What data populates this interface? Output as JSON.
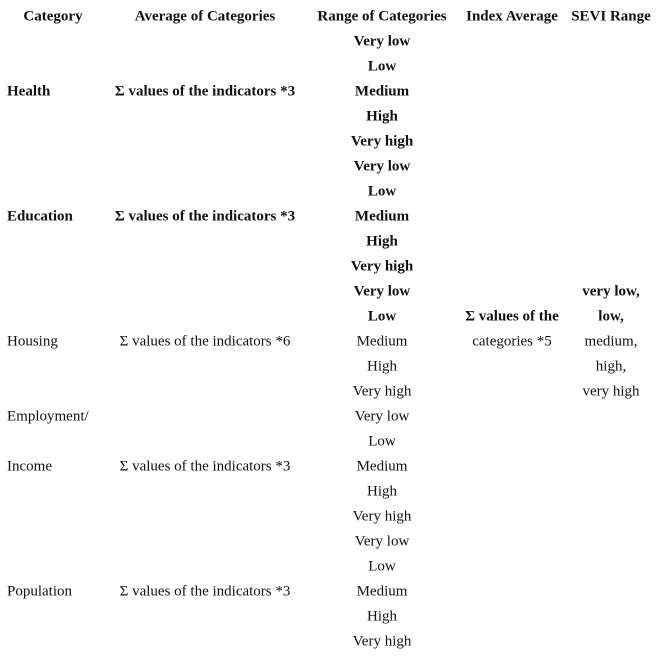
{
  "table": {
    "headers": [
      "Category",
      "Average of Categories",
      "Range of Categories",
      "Index Average",
      "SEVI Range"
    ],
    "groups": [
      {
        "category": [
          "Health"
        ],
        "average": "Σ values of the indicators *3",
        "ranges": [
          "Very low",
          "Low",
          "Medium",
          "High",
          "Very high"
        ]
      },
      {
        "category": [
          "Education"
        ],
        "average": "Σ values of the indicators *3",
        "ranges": [
          "Very low",
          "Low",
          "Medium",
          "High",
          "Very high"
        ]
      },
      {
        "category": [
          "Housing"
        ],
        "average": "Σ values of the indicators *6",
        "ranges": [
          "Very low",
          "Low",
          "Medium",
          "High",
          "Very high"
        ]
      },
      {
        "category": [
          "Employment/",
          "Income"
        ],
        "average": "Σ values of the indicators *3",
        "ranges": [
          "Very low",
          "Low",
          "Medium",
          "High",
          "Very high"
        ]
      },
      {
        "category": [
          "Population"
        ],
        "average": "Σ values of the indicators *3",
        "ranges": [
          "Very low",
          "Low",
          "Medium",
          "High",
          "Very high"
        ]
      }
    ],
    "index_average": [
      "Σ values of the",
      "categories *5"
    ],
    "sevi_range": [
      "very low,",
      "low,",
      "medium,",
      "high,",
      "very high"
    ]
  }
}
